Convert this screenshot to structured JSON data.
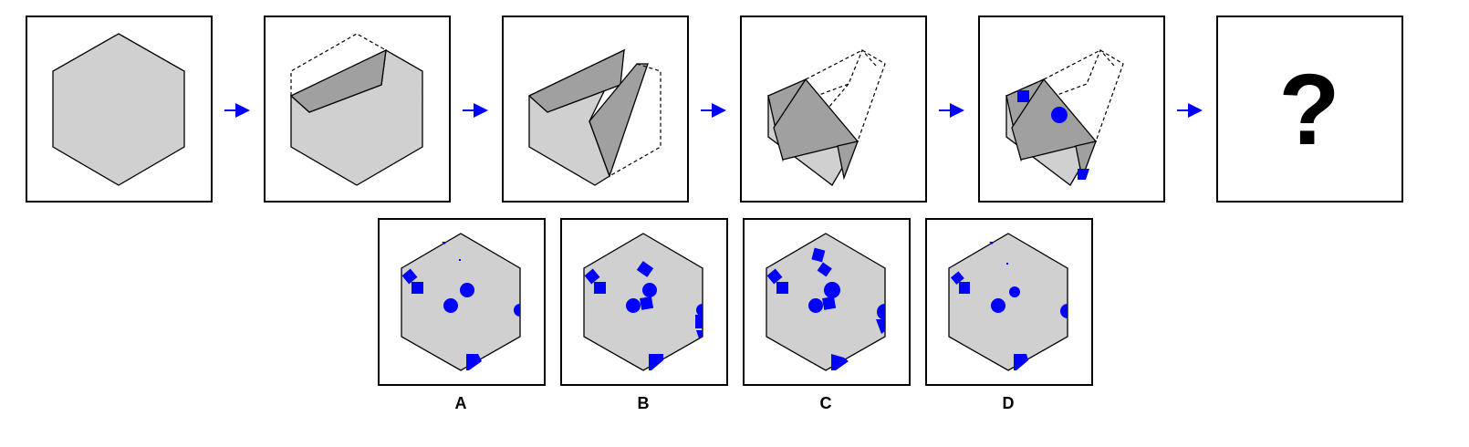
{
  "question_mark": "?",
  "options": [
    {
      "label": "A"
    },
    {
      "label": "B"
    },
    {
      "label": "C"
    },
    {
      "label": "D"
    }
  ],
  "colors": {
    "paper": "#d0d0d0",
    "fold": "#a0a0a0",
    "hole": "#0000ff",
    "arrow": "#0000ff",
    "frame": "#000000"
  }
}
